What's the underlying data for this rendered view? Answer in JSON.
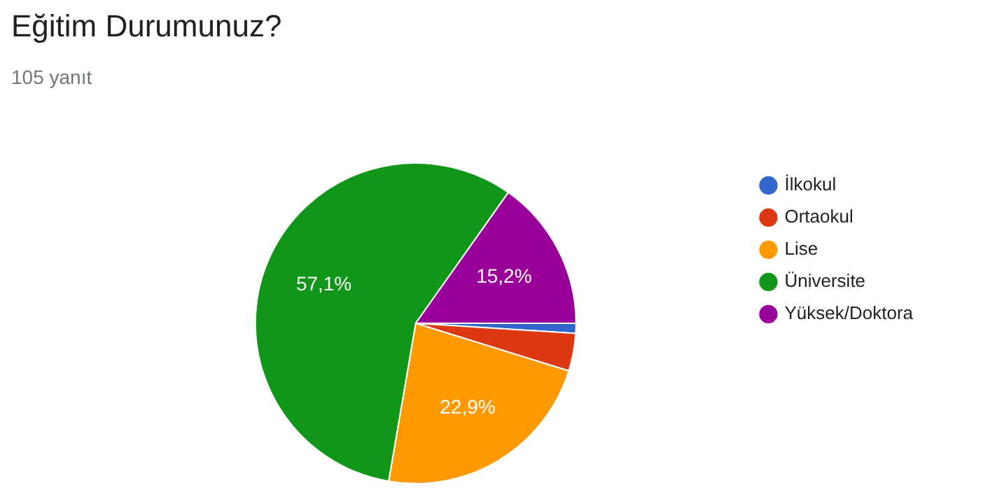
{
  "chart_data": {
    "type": "pie",
    "title": "Eğitim Durumunuz?",
    "subtitle": "105 yanıt",
    "categories": [
      "İlkokul",
      "Ortaokul",
      "Lise",
      "Üniversite",
      "Yüksek/Doktora"
    ],
    "values": [
      1.0,
      3.8,
      22.9,
      57.1,
      15.2
    ],
    "value_labels": [
      null,
      null,
      "22,9%",
      "57,1%",
      "15,2%"
    ],
    "colors": [
      "#3366cc",
      "#dc3912",
      "#ff9900",
      "#109618",
      "#990099"
    ],
    "legend": "right"
  }
}
